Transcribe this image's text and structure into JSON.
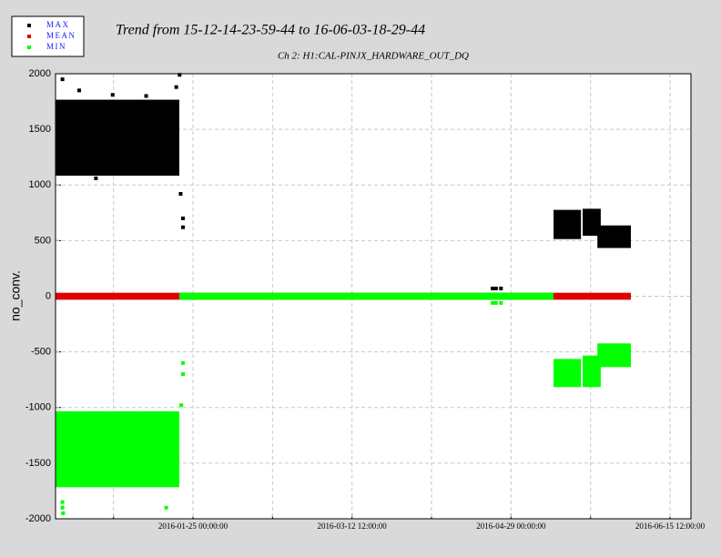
{
  "chart_data": {
    "type": "scatter",
    "title": "Trend from 15-12-14-23-59-44 to 16-06-03-18-29-44",
    "subtitle": "Ch 2: H1:CAL-PINJX_HARDWARE_OUT_DQ",
    "y_label": "no_conv.",
    "grid": true,
    "legend_position": "top-left",
    "xlim": [
      -17.07,
      172.75
    ],
    "xticks": [
      {
        "value": 24,
        "label": "2016-01-25 00:00:00"
      },
      {
        "value": 71.5,
        "label": "2016-03-12 12:00:00"
      },
      {
        "value": 119,
        "label": "2016-04-29 00:00:00"
      },
      {
        "value": 166.5,
        "label": "2016-06-15 12:00:00"
      }
    ],
    "minor_xticks": [
      0.25,
      47.75,
      95.25,
      142.75
    ],
    "ylim": [
      -2000,
      2000
    ],
    "yticks": [
      -2000,
      -1500,
      -1000,
      -500,
      0,
      500,
      1000,
      1500,
      2000
    ],
    "series": [
      {
        "name": "MAX",
        "color": "#000000",
        "bands": [
          {
            "x": [
              -17.07,
              19.9
            ],
            "range": [
              1100,
              1750
            ]
          },
          {
            "x": [
              131.7,
              139.9
            ],
            "range": [
              530,
              760
            ]
          },
          {
            "x": [
              140.4,
              145.8
            ],
            "range": [
              560,
              770
            ]
          },
          {
            "x": [
              144.8,
              154.8
            ],
            "range": [
              450,
              620
            ]
          }
        ],
        "points": {
          "x": [
            -15,
            -10,
            -5,
            0,
            10,
            19,
            20,
            20.3,
            21,
            21,
            113.5,
            114.5,
            116
          ],
          "values": [
            1950,
            1850,
            1060,
            1810,
            1800,
            1880,
            1990,
            920,
            700,
            620,
            70,
            70,
            70
          ]
        }
      },
      {
        "name": "MEAN",
        "color": "#e00000",
        "bands": [
          {
            "x": [
              -17.07,
              154.8
            ],
            "range": [
              -15,
              15
            ]
          }
        ],
        "points": {
          "x": [],
          "values": []
        }
      },
      {
        "name": "MIN",
        "color": "#00ff00",
        "bands": [
          {
            "x": [
              -17.07,
              19.9
            ],
            "range": [
              -1700,
              -1050
            ]
          },
          {
            "x": [
              19.9,
              131.7
            ],
            "range": [
              -15,
              15
            ]
          },
          {
            "x": [
              131.7,
              139.9
            ],
            "range": [
              -800,
              -580
            ]
          },
          {
            "x": [
              140.4,
              145.8
            ],
            "range": [
              -800,
              -550
            ]
          },
          {
            "x": [
              144.8,
              154.8
            ],
            "range": [
              -620,
              -440
            ]
          }
        ],
        "points": {
          "x": [
            -15,
            -15,
            -14.8,
            16,
            20.5,
            21,
            21,
            113.5,
            114.5,
            116
          ],
          "values": [
            -1850,
            -1900,
            -1950,
            -1900,
            -980,
            -600,
            -700,
            -60,
            -60,
            -60
          ]
        }
      }
    ]
  }
}
